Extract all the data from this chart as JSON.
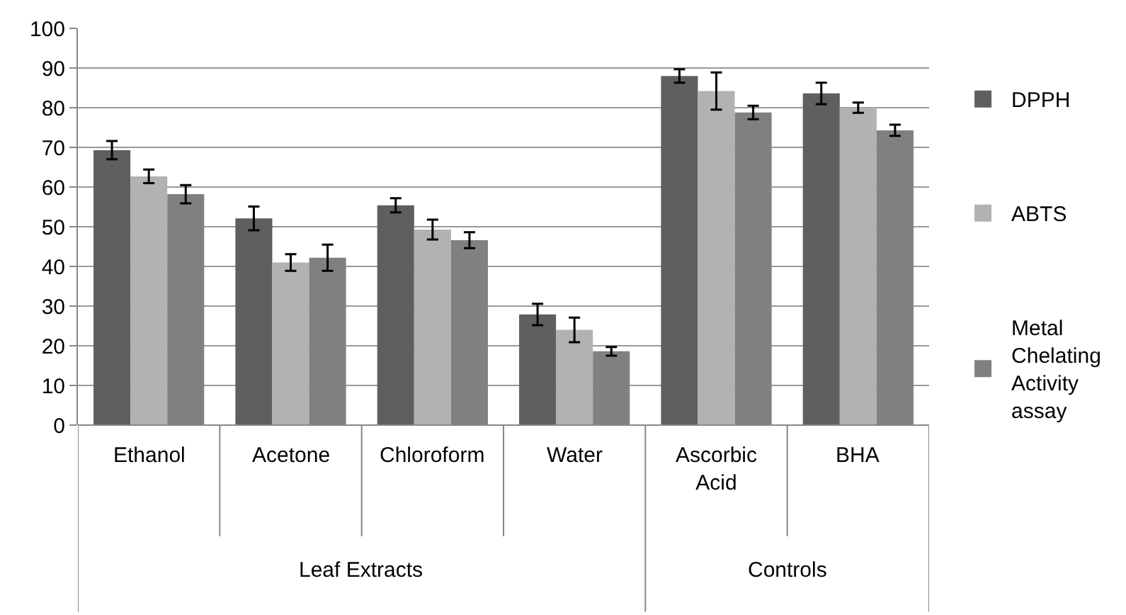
{
  "chart_data": {
    "type": "bar",
    "categories": [
      "Ethanol",
      "Acetone",
      "Chloroform",
      "Water",
      "Ascorbic Acid",
      "BHA"
    ],
    "series": [
      {
        "name": "DPPH",
        "color": "#5f5f5f",
        "values": [
          69.3,
          52.1,
          55.4,
          27.9,
          88.0,
          83.6
        ],
        "errors": [
          2.3,
          3.0,
          1.8,
          2.7,
          1.7,
          2.7
        ]
      },
      {
        "name": "ABTS",
        "color": "#b2b2b2",
        "values": [
          62.7,
          41.0,
          49.3,
          24.0,
          84.2,
          80.0
        ],
        "errors": [
          1.7,
          2.1,
          2.5,
          3.1,
          4.7,
          1.3
        ]
      },
      {
        "name": "Metal Chelating Activity assay",
        "color": "#808080",
        "values": [
          58.2,
          42.2,
          46.6,
          18.6,
          78.8,
          74.3
        ],
        "errors": [
          2.3,
          3.3,
          2.0,
          1.1,
          1.7,
          1.4
        ]
      }
    ],
    "annotations": [
      "Leaf Extracts",
      "Controls"
    ],
    "ylim": [
      0,
      100
    ],
    "yticks": [
      0,
      10,
      20,
      30,
      40,
      50,
      60,
      70,
      80,
      90,
      100
    ],
    "grid": "y",
    "legend": "right"
  }
}
